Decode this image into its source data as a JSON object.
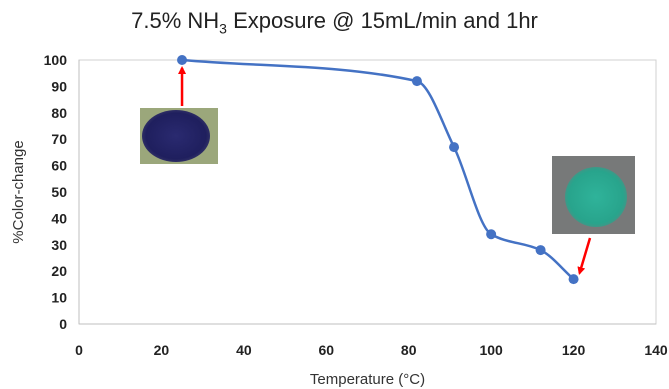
{
  "chart_data": {
    "type": "line",
    "title": {
      "prefix": "7.5% NH",
      "subscript": "3",
      "suffix": " Exposure @ 15mL/min and 1hr"
    },
    "xlabel": "Temperature (°C)",
    "ylabel": "%Color-change",
    "xlim": [
      0,
      140
    ],
    "ylim": [
      0,
      100
    ],
    "x_ticks": [
      0,
      20,
      40,
      60,
      80,
      100,
      120,
      140
    ],
    "y_ticks": [
      0,
      10,
      20,
      30,
      40,
      50,
      60,
      70,
      80,
      90,
      100
    ],
    "grid": false,
    "series": [
      {
        "x": [
          25,
          82,
          91,
          100,
          112,
          120
        ],
        "y": [
          100,
          92,
          67,
          34,
          28,
          17
        ],
        "color": "#4472C4",
        "smooth": true
      }
    ],
    "annotations": [
      {
        "icon": "dark-blue-sample-photo",
        "points_to": [
          25,
          100
        ],
        "arrow_color": "#FF0000"
      },
      {
        "icon": "teal-sample-photo",
        "points_to": [
          120,
          17
        ],
        "arrow_color": "#FF0000"
      }
    ]
  }
}
